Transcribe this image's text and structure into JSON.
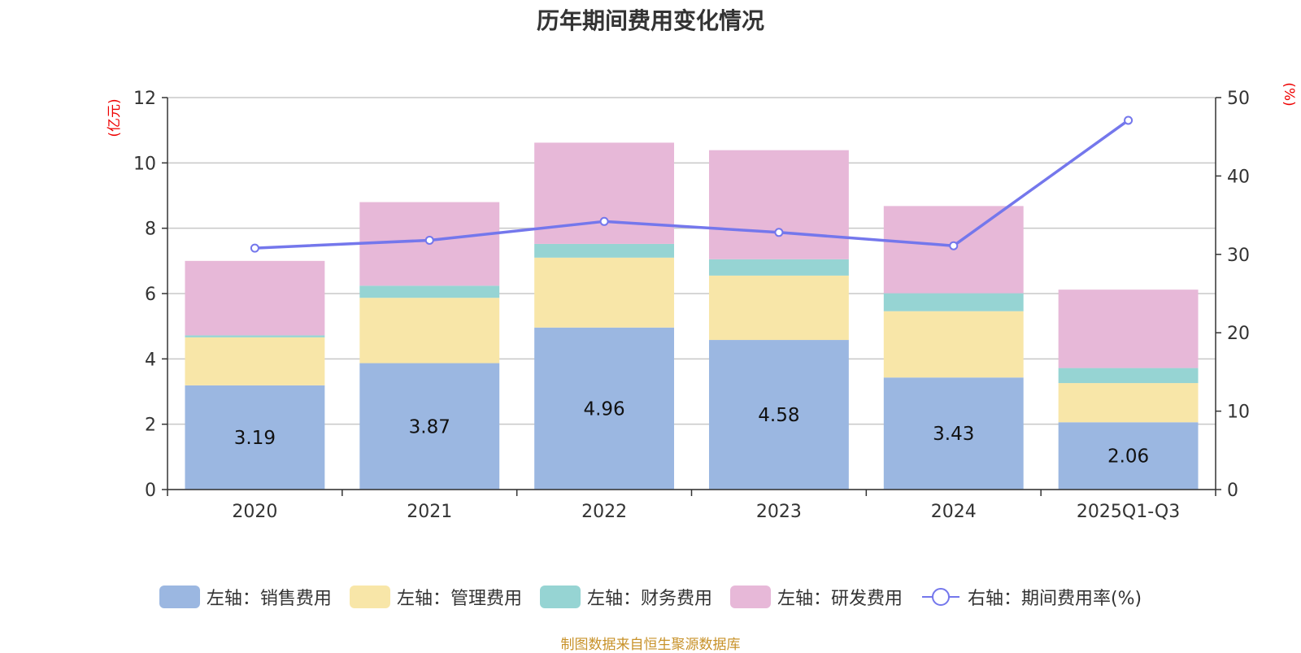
{
  "chart_data": {
    "type": "bar",
    "title": "历年期间费用变化情况",
    "categories": [
      "2020",
      "2021",
      "2022",
      "2023",
      "2024",
      "2025Q1-Q3"
    ],
    "left_axis": {
      "label": "(亿元)",
      "ylim": [
        0,
        12
      ],
      "ticks": [
        "0",
        "2",
        "4",
        "6",
        "8",
        "10",
        "12"
      ]
    },
    "right_axis": {
      "label": "(%)",
      "ylim": [
        0,
        50
      ],
      "ticks": [
        "0",
        "10",
        "20",
        "30",
        "40",
        "50"
      ]
    },
    "series": [
      {
        "name": "左轴：销售费用",
        "kind": "bar",
        "axis": "left",
        "color": "#9bb7e1",
        "values": [
          3.19,
          3.87,
          4.96,
          4.58,
          3.43,
          2.06
        ],
        "labels": [
          "3.19",
          "3.87",
          "4.96",
          "4.58",
          "3.43",
          "2.06"
        ]
      },
      {
        "name": "左轴：管理费用",
        "kind": "bar",
        "axis": "left",
        "color": "#f8e6a8",
        "values": [
          1.47,
          2.0,
          2.14,
          1.97,
          2.03,
          1.2
        ]
      },
      {
        "name": "左轴：财务费用",
        "kind": "bar",
        "axis": "left",
        "color": "#96d4d3",
        "values": [
          0.06,
          0.37,
          0.42,
          0.5,
          0.55,
          0.46
        ]
      },
      {
        "name": "左轴：研发费用",
        "kind": "bar",
        "axis": "left",
        "color": "#e7b8d8",
        "values": [
          2.28,
          2.56,
          3.1,
          3.34,
          2.67,
          2.4
        ]
      },
      {
        "name": "右轴：期间费用率(%)",
        "kind": "line",
        "axis": "right",
        "color": "#7477ec",
        "values": [
          30.8,
          31.8,
          34.2,
          32.8,
          31.1,
          47.1
        ]
      }
    ],
    "grid": true
  },
  "source": "制图数据来自恒生聚源数据库"
}
